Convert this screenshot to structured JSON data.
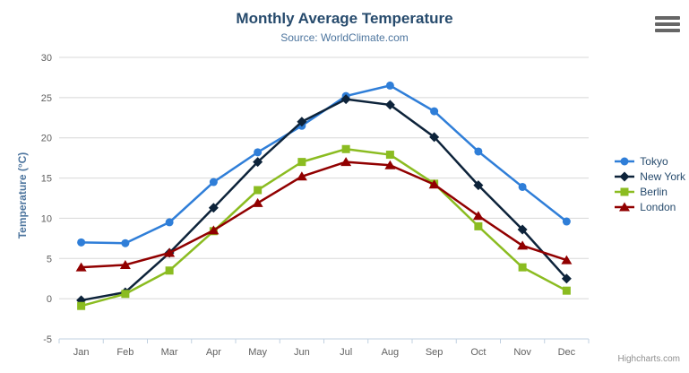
{
  "header": {
    "title": "Monthly Average Temperature",
    "subtitle": "Source: WorldClimate.com"
  },
  "credits": "Highcharts.com",
  "icons": {
    "context_menu": "hamburger-icon"
  },
  "colors": {
    "title": "#274b6d",
    "subtitle": "#4d759e",
    "y_axis_title": "#4d759e",
    "axis_labels": "#606060",
    "gridline": "#d8d8d8",
    "axis_line": "#c0d0e0",
    "tick": "#c0d0e0",
    "legend_text": "#274b6d",
    "credits_text": "#909090",
    "burger_icon": "#666666"
  },
  "chart_data": {
    "type": "line",
    "title": "Monthly Average Temperature",
    "subtitle": "Source: WorldClimate.com",
    "categories": [
      "Jan",
      "Feb",
      "Mar",
      "Apr",
      "May",
      "Jun",
      "Jul",
      "Aug",
      "Sep",
      "Oct",
      "Nov",
      "Dec"
    ],
    "series": [
      {
        "name": "Tokyo",
        "color": "#2f7ed8",
        "marker": "circle",
        "values": [
          7.0,
          6.9,
          9.5,
          14.5,
          18.2,
          21.5,
          25.2,
          26.5,
          23.3,
          18.3,
          13.9,
          9.6
        ]
      },
      {
        "name": "New York",
        "color": "#0d233a",
        "marker": "diamond",
        "values": [
          -0.2,
          0.8,
          5.7,
          11.3,
          17.0,
          22.0,
          24.8,
          24.1,
          20.1,
          14.1,
          8.6,
          2.5
        ]
      },
      {
        "name": "Berlin",
        "color": "#8bbc21",
        "marker": "square",
        "values": [
          -0.9,
          0.6,
          3.5,
          8.4,
          13.5,
          17.0,
          18.6,
          17.9,
          14.3,
          9.0,
          3.9,
          1.0
        ]
      },
      {
        "name": "London",
        "color": "#910000",
        "marker": "triangle",
        "values": [
          3.9,
          4.2,
          5.7,
          8.5,
          11.9,
          15.2,
          17.0,
          16.6,
          14.2,
          10.3,
          6.6,
          4.8
        ]
      }
    ],
    "xlabel": "",
    "ylabel": "Temperature (°C)",
    "ylim": [
      -5,
      30
    ],
    "ytick_step": 5,
    "grid": true,
    "legend_position": "right"
  }
}
